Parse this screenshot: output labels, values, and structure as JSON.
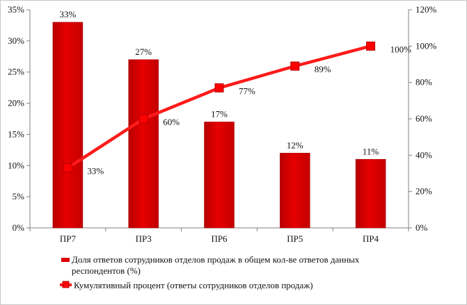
{
  "chart_data": {
    "type": "bar",
    "categories": [
      "ПР7",
      "ПР3",
      "ПР6",
      "ПР5",
      "ПР4"
    ],
    "series": [
      {
        "name": "Доля ответов сотрудников отделов продаж в общем кол-ве ответов данных респондентов (%)",
        "type": "bar",
        "axis": "left",
        "values": [
          33,
          27,
          17,
          12,
          11
        ],
        "labels": [
          "33%",
          "27%",
          "17%",
          "12%",
          "11%"
        ]
      },
      {
        "name": "Кумулятивный процент (ответы сотрудников отделов продаж)",
        "type": "line",
        "axis": "right",
        "values": [
          33,
          60,
          77,
          89,
          100
        ],
        "labels": [
          "33%",
          "60%",
          "77%",
          "89%",
          "100%"
        ]
      }
    ],
    "left_axis": {
      "ylim": [
        0,
        35
      ],
      "ticks": [
        "0%",
        "5%",
        "10%",
        "15%",
        "20%",
        "25%",
        "30%",
        "35%"
      ]
    },
    "right_axis": {
      "ylim": [
        0,
        120
      ],
      "ticks": [
        "0%",
        "20%",
        "40%",
        "60%",
        "80%",
        "100%",
        "120%"
      ]
    },
    "grid": false,
    "legend_position": "bottom",
    "colors": {
      "bar": "#dd0000",
      "line": "#ff1a1a",
      "marker": "#ff0000",
      "axis": "#7f7f7f"
    }
  },
  "legend": {
    "bar_line1": "Доля ответов сотрудников отделов продаж в общем кол-ве ответов данных",
    "bar_line2": "респондентов (%)",
    "line_label": "Кумулятивный процент (ответы сотрудников отделов продаж)"
  }
}
